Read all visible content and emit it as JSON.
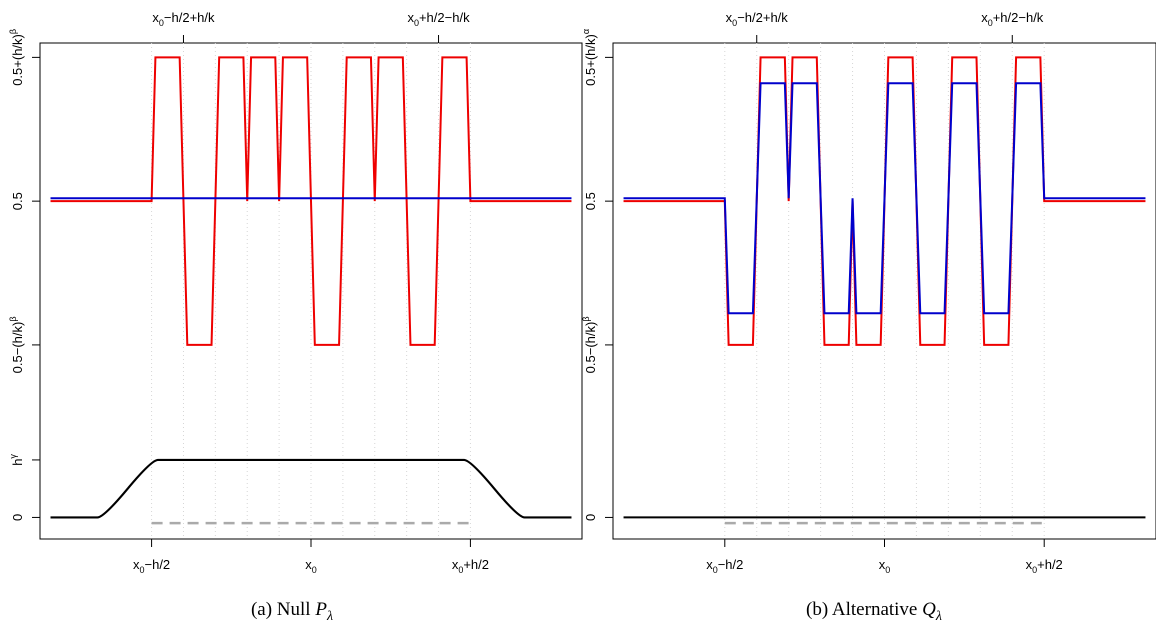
{
  "figure": {
    "panels": [
      {
        "caption_prefix": "(a) Null ",
        "caption_symbol": "P",
        "caption_sub": "λ"
      },
      {
        "caption_prefix": "(b) Alternative ",
        "caption_symbol": "Q",
        "caption_sub": "λ"
      }
    ]
  },
  "colors": {
    "red": "#ee0000",
    "blue": "#0000cc",
    "black": "#000000",
    "dashed_gray": "#aaaaaa",
    "grid_dotted": "#d6d6d6"
  },
  "chart_data": [
    {
      "type": "line",
      "title": "",
      "xlabel": "",
      "ylabel": "",
      "xlim": [
        -0.85,
        0.85
      ],
      "ylim": [
        -0.075,
        1.65
      ],
      "grid": "dotted vertical lines at bump boundaries",
      "x_ticks_bottom": [
        {
          "x": -0.5,
          "label": "x₀−h/2",
          "base": "x",
          "sub": "0",
          "rest": "−h/2"
        },
        {
          "x": 0.0,
          "label": "x₀",
          "base": "x",
          "sub": "0",
          "rest": ""
        },
        {
          "x": 0.5,
          "label": "x₀+h/2",
          "base": "x",
          "sub": "0",
          "rest": "+h/2"
        }
      ],
      "x_ticks_top": [
        {
          "x": -0.4,
          "label": "x₀−h/2+h/k",
          "base": "x",
          "sub": "0",
          "rest": "−h/2+h/k"
        },
        {
          "x": 0.4,
          "label": "x₀+h/2−h/k",
          "base": "x",
          "sub": "0",
          "rest": "+h/2−h/k"
        }
      ],
      "y_ticks": [
        {
          "y": 0.0,
          "label": "0",
          "base": "0",
          "sup": ""
        },
        {
          "y": 0.2,
          "label": "hᵞ",
          "base": "h",
          "sup": "γ"
        },
        {
          "y": 0.6,
          "label": "0.5−(h/k)ᵝ",
          "base": "0.5−(h/k)",
          "sup": "β"
        },
        {
          "y": 1.1,
          "label": "0.5",
          "base": "0.5",
          "sup": ""
        },
        {
          "y": 1.6,
          "label": "0.5+(h/k)ᵝ",
          "base": "0.5+(h/k)",
          "sup": "β"
        }
      ],
      "bump_cells": {
        "x_start": -0.5,
        "x_end": 0.5,
        "count": 10,
        "signs": [
          1,
          -1,
          1,
          1,
          1,
          -1,
          1,
          1,
          -1,
          1
        ],
        "red_baseline": 1.1,
        "red_amplitude": 0.5,
        "blue_level": 1.11
      },
      "series": [
        {
          "kind": "bumps",
          "color_key": "red",
          "baseline": 1.1,
          "amplitude": 0.5,
          "scale": 1.0
        },
        {
          "kind": "flat",
          "color_key": "blue",
          "y": 1.11
        },
        {
          "kind": "trapezoid",
          "color_key": "black",
          "low": 0.0,
          "high": 0.2,
          "knots": [
            -0.85,
            -0.65,
            -0.5,
            0.5,
            0.65,
            0.85
          ]
        },
        {
          "kind": "dashed",
          "color_key": "dashed_gray",
          "y": -0.02,
          "x_range": [
            -0.5,
            0.5
          ]
        }
      ]
    },
    {
      "type": "line",
      "title": "",
      "xlabel": "",
      "ylabel": "",
      "xlim": [
        -0.85,
        0.85
      ],
      "ylim": [
        -0.075,
        1.65
      ],
      "grid": "dotted vertical lines at bump boundaries",
      "x_ticks_bottom": [
        {
          "x": -0.5,
          "label": "x₀−h/2",
          "base": "x",
          "sub": "0",
          "rest": "−h/2"
        },
        {
          "x": 0.0,
          "label": "x₀",
          "base": "x",
          "sub": "0",
          "rest": ""
        },
        {
          "x": 0.5,
          "label": "x₀+h/2",
          "base": "x",
          "sub": "0",
          "rest": "+h/2"
        }
      ],
      "x_ticks_top": [
        {
          "x": -0.4,
          "label": "x₀−h/2+h/k",
          "base": "x",
          "sub": "0",
          "rest": "−h/2+h/k"
        },
        {
          "x": 0.4,
          "label": "x₀+h/2−h/k",
          "base": "x",
          "sub": "0",
          "rest": "+h/2−h/k"
        }
      ],
      "y_ticks": [
        {
          "y": 0.0,
          "label": "0",
          "base": "0",
          "sup": ""
        },
        {
          "y": 0.6,
          "label": "0.5−(h/k)ᵝ",
          "base": "0.5−(h/k)",
          "sup": "β"
        },
        {
          "y": 1.1,
          "label": "0.5",
          "base": "0.5",
          "sup": ""
        },
        {
          "y": 1.6,
          "label": "0.5+(h/k)ᵅ",
          "base": "0.5+(h/k)",
          "sup": "α"
        }
      ],
      "bump_cells": {
        "x_start": -0.5,
        "x_end": 0.5,
        "count": 10,
        "signs": [
          -1,
          1,
          1,
          -1,
          -1,
          1,
          -1,
          1,
          -1,
          1
        ],
        "red_baseline": 1.1,
        "red_amplitude": 0.5,
        "blue_level": 1.11
      },
      "series": [
        {
          "kind": "bumps",
          "color_key": "red",
          "baseline": 1.1,
          "amplitude": 0.5,
          "scale": 1.0
        },
        {
          "kind": "bumps",
          "color_key": "blue",
          "baseline": 1.11,
          "amplitude": 0.5,
          "scale": 0.8
        },
        {
          "kind": "flat",
          "color_key": "black",
          "y": 0.0
        },
        {
          "kind": "dashed",
          "color_key": "dashed_gray",
          "y": -0.02,
          "x_range": [
            -0.5,
            0.5
          ]
        }
      ]
    }
  ]
}
